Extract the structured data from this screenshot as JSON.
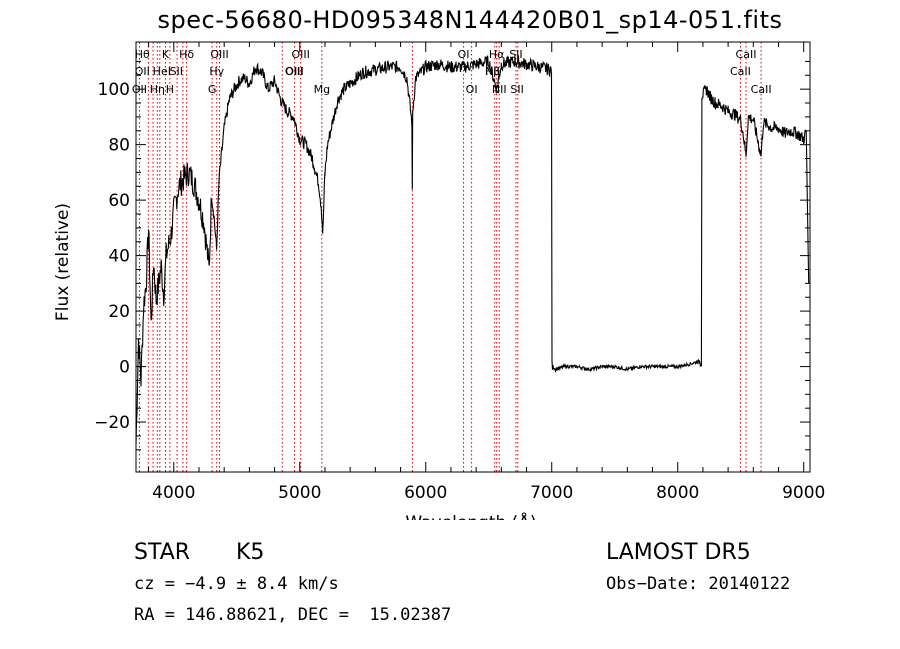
{
  "chart_data": {
    "type": "line",
    "title": "spec-56680-HD095348N144420B01_sp14-051.fits",
    "xlabel": "Wavelength (Å)",
    "ylabel": "Flux (relative)",
    "xlim": [
      3700,
      9050
    ],
    "ylim": [
      -38,
      117
    ],
    "x_ticks": [
      4000,
      5000,
      6000,
      7000,
      8000,
      9000
    ],
    "y_ticks": [
      -20,
      0,
      20,
      40,
      60,
      80,
      100
    ],
    "line_color": "#000000",
    "marker_color": "#cc0000",
    "series": [
      {
        "x": [
          3700,
          3720,
          3740,
          3760,
          3780,
          3800,
          3820,
          3840,
          3860,
          3880,
          3900,
          3920,
          3940,
          3960,
          3980,
          4000,
          4040,
          4080,
          4120,
          4160,
          4200,
          4240,
          4280,
          4300,
          4320,
          4340,
          4360,
          4400,
          4440,
          4480,
          4520,
          4560,
          4600,
          4650,
          4700,
          4750,
          4800,
          4850,
          4900,
          4950,
          5000,
          5050,
          5100,
          5150,
          5170,
          5183,
          5200,
          5220,
          5260,
          5300,
          5350,
          5400,
          5450,
          5500,
          5600,
          5700,
          5800,
          5850,
          5890,
          5893,
          5896,
          5920,
          6000,
          6100,
          6200,
          6300,
          6400,
          6500,
          6563,
          6600,
          6700,
          6800,
          6900,
          6990,
          7010,
          7030,
          7100,
          7200,
          7300,
          7400,
          7500,
          7600,
          7700,
          7800,
          7900,
          8000,
          8100,
          8180,
          8200,
          8230,
          8260,
          8300,
          8350,
          8400,
          8450,
          8498,
          8520,
          8542,
          8560,
          8600,
          8662,
          8680,
          8750,
          8800,
          8850,
          8900,
          8950,
          9000,
          9020,
          9040
        ],
        "y": [
          -28,
          10,
          -5,
          22,
          30,
          50,
          15,
          38,
          24,
          30,
          36,
          26,
          40,
          44,
          48,
          56,
          65,
          68,
          70,
          66,
          60,
          52,
          35,
          62,
          54,
          42,
          68,
          86,
          96,
          100,
          103,
          104,
          102,
          108,
          106,
          100,
          103,
          96,
          92,
          90,
          82,
          80,
          75,
          66,
          58,
          48,
          70,
          80,
          88,
          96,
          100,
          102,
          104,
          106,
          107,
          108,
          108,
          104,
          88,
          62,
          92,
          104,
          108,
          109,
          108,
          108,
          109,
          110,
          100,
          109,
          110,
          109,
          108,
          107,
          0,
          -1,
          0,
          0,
          -1,
          0,
          0,
          -1,
          0,
          0,
          0,
          0,
          1,
          2,
          98,
          100,
          97,
          95,
          94,
          92,
          91,
          89,
          84,
          76,
          90,
          89,
          76,
          88,
          86,
          86,
          84,
          85,
          84,
          82,
          85,
          30
        ]
      }
    ],
    "lines": [
      {
        "x": 3727,
        "label": "OII",
        "row": 2
      },
      {
        "x": 3798,
        "label": "",
        "row": 0
      },
      {
        "x": 3835,
        "label": "",
        "row": 0
      },
      {
        "x": 3869,
        "label": "",
        "row": 1
      },
      {
        "x": 3889,
        "label": "",
        "row": 0
      },
      {
        "x": 3934,
        "label": "K",
        "row": 0
      },
      {
        "x": 3969,
        "label": "H",
        "row": 2
      },
      {
        "x": 4026,
        "label": "",
        "row": 1
      },
      {
        "x": 4072,
        "label": "",
        "row": 1
      },
      {
        "x": 4102,
        "label": "Hδ",
        "row": 0
      },
      {
        "x": 4304,
        "label": "G",
        "row": 2
      },
      {
        "x": 4341,
        "label": "Hγ",
        "row": 1
      },
      {
        "x": 4363,
        "label": "OIII",
        "row": 0
      },
      {
        "x": 4861,
        "label": "",
        "row": 0
      },
      {
        "x": 4959,
        "label": "OIII",
        "row": 1
      },
      {
        "x": 5007,
        "label": "OIII",
        "row": 0
      },
      {
        "x": 5175,
        "label": "Mg",
        "row": 2
      },
      {
        "x": 5894,
        "label": "",
        "row": 0
      },
      {
        "x": 6300,
        "label": "OI",
        "row": 0
      },
      {
        "x": 6364,
        "label": "OI",
        "row": 2
      },
      {
        "x": 6548,
        "label": "",
        "row": 0
      },
      {
        "x": 6563,
        "label": "Hα",
        "row": 0
      },
      {
        "x": 6583,
        "label": "NII",
        "row": 2
      },
      {
        "x": 6716,
        "label": "SII",
        "row": 0
      },
      {
        "x": 6731,
        "label": "",
        "row": 1
      },
      {
        "x": 8498,
        "label": "CaII",
        "row": 1
      },
      {
        "x": 8542,
        "label": "CaII",
        "row": 0
      },
      {
        "x": 8662,
        "label": "CaII",
        "row": 2
      }
    ],
    "extra_labels": [
      {
        "x": 3750,
        "label": "Hθ",
        "row": 0
      },
      {
        "x": 3750,
        "label": "OII",
        "row": 1
      },
      {
        "x": 3870,
        "label": "Hη",
        "row": 2
      },
      {
        "x": 3905,
        "label": "HeI",
        "row": 1
      },
      {
        "x": 4020,
        "label": "SII",
        "row": 1
      },
      {
        "x": 4955,
        "label": "OIII",
        "row": 1
      },
      {
        "x": 6530,
        "label": "Hβ",
        "row": 1
      },
      {
        "x": 6530,
        "label": "NII",
        "row": 1
      },
      {
        "x": 6725,
        "label": "SII",
        "row": 2
      }
    ]
  },
  "info": {
    "object_type": "STAR",
    "subclass": "K5",
    "survey": "LAMOST DR5",
    "cz": "cz = −4.9 ± 8.4 km/s",
    "obs_date": "Obs−Date: 20140122",
    "coords": "RA = 146.88621, DEC =  15.02387"
  }
}
